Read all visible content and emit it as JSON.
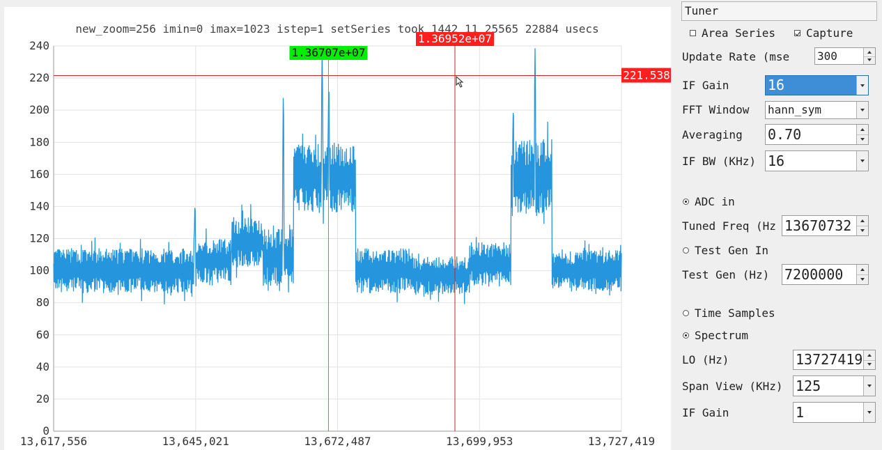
{
  "chart_data": {
    "type": "line",
    "title": "new_zoom=256 imin=0 imax=1023 istep=1 setSeries took 1442 11 25565 22884 usecs",
    "xlabel": "",
    "ylabel": "",
    "xlim": [
      13617556,
      13727419
    ],
    "ylim": [
      0,
      240
    ],
    "yticks": [
      0,
      20,
      40,
      60,
      80,
      100,
      120,
      140,
      160,
      180,
      200,
      220,
      240
    ],
    "xticks": [
      "13,617,556",
      "13,645,021",
      "13,672,487",
      "13,699,953",
      "13,727,419"
    ],
    "grid": true,
    "series_color": "#2596de",
    "segments": [
      {
        "x0": 13617556,
        "x1": 13645000,
        "base": 100,
        "spread": 14
      },
      {
        "x0": 13645000,
        "x1": 13652000,
        "base": 106,
        "spread": 14
      },
      {
        "x0": 13652000,
        "x1": 13658000,
        "base": 118,
        "spread": 16
      },
      {
        "x0": 13658000,
        "x1": 13664000,
        "base": 108,
        "spread": 18
      },
      {
        "x0": 13664000,
        "x1": 13676000,
        "base": 158,
        "spread": 22
      },
      {
        "x0": 13676000,
        "x1": 13687000,
        "base": 100,
        "spread": 14
      },
      {
        "x0": 13687000,
        "x1": 13698000,
        "base": 97,
        "spread": 12
      },
      {
        "x0": 13698000,
        "x1": 13706000,
        "base": 104,
        "spread": 14
      },
      {
        "x0": 13706000,
        "x1": 13714000,
        "base": 158,
        "spread": 24
      },
      {
        "x0": 13714000,
        "x1": 13727419,
        "base": 100,
        "spread": 13
      }
    ],
    "peaks": [
      {
        "x": 13644900,
        "y": 146
      },
      {
        "x": 13662000,
        "y": 221
      },
      {
        "x": 13669500,
        "y": 240
      },
      {
        "x": 13670800,
        "y": 222
      },
      {
        "x": 13710700,
        "y": 240
      },
      {
        "x": 13706500,
        "y": 205
      }
    ],
    "cursors": [
      {
        "x": 13670732,
        "color": "#1fd01f",
        "label": "1.36707e+07",
        "label_color": "#00ee00",
        "text_color": "#000000"
      },
      {
        "x": 13695200,
        "color": "#cc2020",
        "label": "1.36952e+07",
        "label_color": "#ff1f1f",
        "text_color": "#ffffff"
      }
    ],
    "hline": {
      "y": 221.538,
      "color": "#cc2020",
      "label": "221.538",
      "label_color": "#ff1f1f",
      "text_color": "#ffffff"
    }
  },
  "controls": {
    "header": "Tuner",
    "area_series": {
      "label": "Area Series",
      "checked": false
    },
    "capture": {
      "label": "Capture",
      "checked": true
    },
    "update_rate": {
      "label": "Update Rate (mse",
      "value": "300"
    },
    "if_gain": {
      "label": "IF Gain",
      "value": "16"
    },
    "fft_window": {
      "label": "FFT Window",
      "value": "hann_sym"
    },
    "averaging": {
      "label": "Averaging",
      "value": "0.70"
    },
    "if_bw": {
      "label": "IF BW (KHz)",
      "value": "16"
    },
    "adc_in": {
      "label": "ADC in",
      "selected": true
    },
    "tuned_freq": {
      "label": "Tuned Freq (Hz",
      "value": "13670732"
    },
    "test_gen_in": {
      "label": "Test Gen In",
      "selected": false
    },
    "test_gen": {
      "label": "Test Gen (Hz)",
      "value": "7200000"
    },
    "time_samples": {
      "label": "Time Samples",
      "selected": false
    },
    "spectrum": {
      "label": "Spectrum",
      "selected": true
    },
    "lo": {
      "label": "LO (Hz)",
      "value": "13727419"
    },
    "span_view": {
      "label": "Span View (KHz)",
      "value": "125"
    },
    "if_gain2": {
      "label": "IF Gain",
      "value": "1"
    }
  }
}
